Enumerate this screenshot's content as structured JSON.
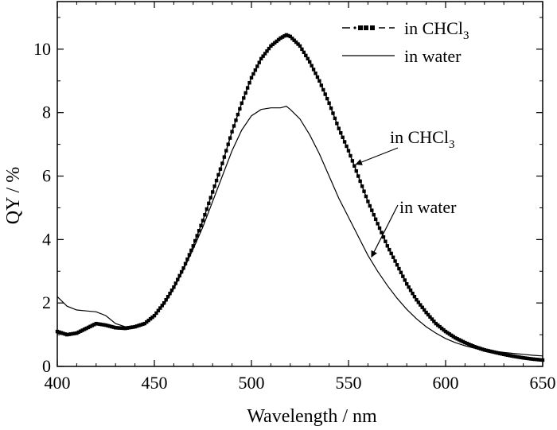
{
  "chart_data": {
    "type": "line",
    "xlabel": "Wavelength / nm",
    "ylabel": "QY / %",
    "xlim": [
      400,
      650
    ],
    "ylim": [
      0,
      11.5
    ],
    "xticks": [
      400,
      450,
      500,
      550,
      600,
      650
    ],
    "yticks": [
      0,
      2,
      4,
      6,
      8,
      10
    ],
    "grid": false,
    "legend_position": "top-right",
    "series": [
      {
        "name": "in CHCl3",
        "style": "dash-dot, square markers",
        "color": "#000000",
        "x": [
          400,
          405,
          410,
          415,
          420,
          425,
          430,
          435,
          440,
          445,
          450,
          455,
          460,
          465,
          470,
          475,
          480,
          485,
          490,
          495,
          500,
          505,
          510,
          515,
          518,
          520,
          525,
          530,
          535,
          540,
          545,
          550,
          555,
          560,
          565,
          570,
          575,
          580,
          585,
          590,
          595,
          600,
          605,
          610,
          615,
          620,
          625,
          630,
          635,
          640,
          645,
          650
        ],
        "y": [
          1.1,
          1.0,
          1.05,
          1.2,
          1.35,
          1.3,
          1.22,
          1.2,
          1.25,
          1.35,
          1.6,
          2.0,
          2.5,
          3.1,
          3.8,
          4.6,
          5.5,
          6.4,
          7.4,
          8.3,
          9.1,
          9.7,
          10.1,
          10.35,
          10.45,
          10.4,
          10.1,
          9.6,
          9.0,
          8.3,
          7.5,
          6.8,
          6.0,
          5.2,
          4.5,
          3.8,
          3.2,
          2.6,
          2.1,
          1.7,
          1.35,
          1.1,
          0.9,
          0.75,
          0.62,
          0.52,
          0.45,
          0.38,
          0.32,
          0.27,
          0.23,
          0.2
        ]
      },
      {
        "name": "in water",
        "style": "solid",
        "color": "#000000",
        "x": [
          400,
          405,
          410,
          415,
          420,
          425,
          430,
          435,
          440,
          445,
          450,
          455,
          460,
          465,
          470,
          475,
          480,
          485,
          490,
          495,
          500,
          505,
          510,
          515,
          518,
          520,
          525,
          530,
          535,
          540,
          545,
          550,
          555,
          560,
          565,
          570,
          575,
          580,
          585,
          590,
          595,
          600,
          605,
          610,
          615,
          620,
          625,
          630,
          635,
          640,
          645,
          650
        ],
        "y": [
          2.2,
          1.9,
          1.78,
          1.75,
          1.72,
          1.6,
          1.35,
          1.25,
          1.28,
          1.38,
          1.6,
          1.95,
          2.45,
          3.05,
          3.7,
          4.4,
          5.2,
          6.0,
          6.8,
          7.45,
          7.9,
          8.1,
          8.15,
          8.15,
          8.2,
          8.1,
          7.8,
          7.3,
          6.7,
          6.0,
          5.3,
          4.7,
          4.1,
          3.5,
          3.0,
          2.55,
          2.15,
          1.8,
          1.5,
          1.25,
          1.05,
          0.88,
          0.75,
          0.65,
          0.57,
          0.52,
          0.48,
          0.44,
          0.41,
          0.38,
          0.35,
          0.33
        ]
      }
    ],
    "legend": [
      {
        "label": "in CHCl",
        "subscript": "3"
      },
      {
        "label": "in water",
        "subscript": ""
      }
    ],
    "annotations": [
      {
        "label": "in CHCl",
        "subscript": "3",
        "arrow_to_series": "in CHCl3",
        "arrow_to_x": 553
      },
      {
        "label": "in water",
        "subscript": "",
        "arrow_to_series": "in water",
        "arrow_to_x": 561
      }
    ]
  }
}
